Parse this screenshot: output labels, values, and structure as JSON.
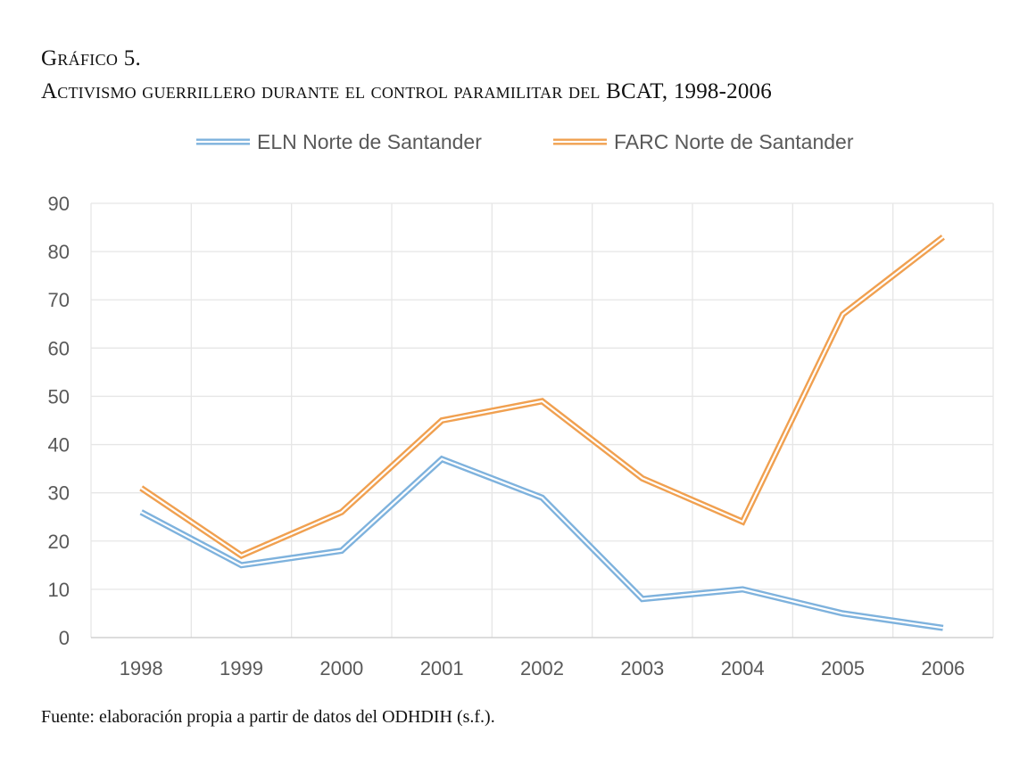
{
  "figure": {
    "label": "Gráfico 5.",
    "title": "Activismo guerrillero durante el control paramilitar del BCAT, 1998-2006",
    "source": "Fuente: elaboración propia a partir de datos del ODHDIH (s.f.)."
  },
  "colors": {
    "eln": "#7EB2DD",
    "farc": "#F0A050",
    "grid": "#E6E6E6",
    "axis": "#D0D0D0",
    "tick_text": "#595959"
  },
  "chart_data": {
    "type": "line",
    "title": "Activismo guerrillero durante el control paramilitar del BCAT, 1998-2006",
    "xlabel": "",
    "ylabel": "",
    "categories": [
      "1998",
      "1999",
      "2000",
      "2001",
      "2002",
      "2003",
      "2004",
      "2005",
      "2006"
    ],
    "ylim": [
      0,
      90
    ],
    "yticks": [
      0,
      10,
      20,
      30,
      40,
      50,
      60,
      70,
      80,
      90
    ],
    "grid": true,
    "legend_position": "top",
    "line_style": "double",
    "series": [
      {
        "name": "ELN Norte de Santander",
        "color": "#7EB2DD",
        "values": [
          26,
          15,
          18,
          37,
          29,
          8,
          10,
          5,
          2
        ]
      },
      {
        "name": "FARC Norte de Santander",
        "color": "#F0A050",
        "values": [
          31,
          17,
          26,
          45,
          49,
          33,
          24,
          67,
          83
        ]
      }
    ]
  }
}
